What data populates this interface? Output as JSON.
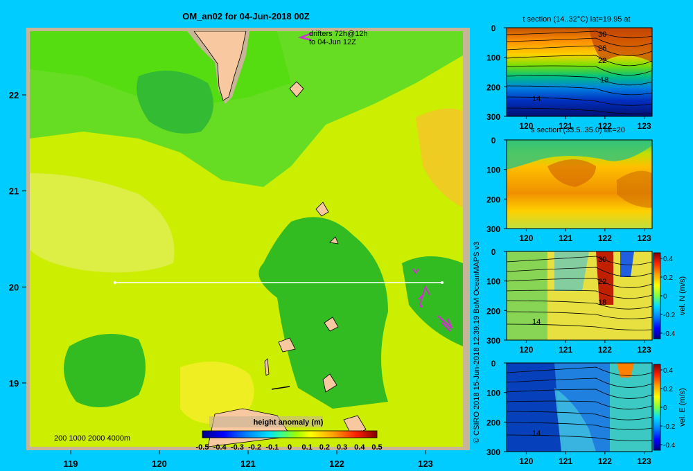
{
  "map": {
    "title": "OM_an02 for 04-Jun-2018 00Z",
    "drifters_label": [
      "drifters 72h@12h",
      "to 04-Jun 12Z"
    ],
    "depth_legend": "200  1000  2000  4000m",
    "colorbar_title": "height anomaly (m)",
    "colorbar_ticks": [
      "-0.5",
      "-0.4",
      "-0.3",
      "-0.2",
      "-0.1",
      "0",
      "0.1",
      "0.2",
      "0.3",
      "0.4",
      "0.5"
    ],
    "credit": "© CSIRO 2018   15-Jun-2018 12:39:19 BoM OceanMAPS v3"
  },
  "colors": {
    "background": "#00ccff",
    "land": "#f8c8a0",
    "coast_shelf": "#c8b496",
    "drifter": "#cc33cc",
    "section_line": "#ffffff"
  },
  "chart_data": [
    {
      "type": "heatmap",
      "title": "OM_an02 for 04-Jun-2018 00Z",
      "x_ticks": [
        "119",
        "120",
        "121",
        "122",
        "123"
      ],
      "y_ticks": [
        "19",
        "20",
        "21",
        "22"
      ],
      "xlim": [
        118.5,
        123.5
      ],
      "ylim": [
        18.3,
        22.7
      ],
      "variable": "height anomaly (m)",
      "color_range": [
        -0.5,
        0.5
      ],
      "section_line": {
        "lat": 20,
        "lon_start": 119.5,
        "lon_end": 123.2
      }
    },
    {
      "type": "heatmap",
      "title": "t section (14..32°C) lat=19.95 at",
      "x_ticks": [
        "120",
        "121",
        "122",
        "123"
      ],
      "y_ticks": [
        "0",
        "100",
        "200",
        "300"
      ],
      "xlim": [
        119.5,
        123.2
      ],
      "ylim": [
        300,
        0
      ],
      "contour_labels": [
        "30",
        "26",
        "22",
        "18",
        "14"
      ]
    },
    {
      "type": "heatmap",
      "title": "s section (33.5..35.0) lat=20",
      "x_ticks": [
        "120",
        "121",
        "122",
        "123"
      ],
      "y_ticks": [
        "0",
        "100",
        "200",
        "300"
      ],
      "xlim": [
        119.5,
        123.2
      ],
      "ylim": [
        300,
        0
      ]
    },
    {
      "type": "heatmap",
      "x_ticks": [
        "120",
        "121",
        "122",
        "123"
      ],
      "y_ticks": [
        "0",
        "100",
        "200",
        "300"
      ],
      "xlim": [
        119.5,
        123.2
      ],
      "ylim": [
        300,
        0
      ],
      "colorbar_label": "vel. N (m/s)",
      "colorbar_ticks": [
        "0.4",
        "0.2",
        "0",
        "-0.2",
        "-0.4"
      ],
      "color_range": [
        -0.4,
        0.4
      ],
      "contour_labels": [
        "30",
        "22",
        "18",
        "14"
      ]
    },
    {
      "type": "heatmap",
      "x_ticks": [
        "120",
        "121",
        "122",
        "123"
      ],
      "y_ticks": [
        "0",
        "100",
        "200",
        "300"
      ],
      "xlim": [
        119.5,
        123.2
      ],
      "ylim": [
        300,
        0
      ],
      "colorbar_label": "vel. E (m/s)",
      "colorbar_ticks": [
        "0.4",
        "0.2",
        "0",
        "-0.2",
        "-0.4"
      ],
      "color_range": [
        -0.4,
        0.4
      ],
      "contour_labels": [
        "14"
      ]
    }
  ]
}
